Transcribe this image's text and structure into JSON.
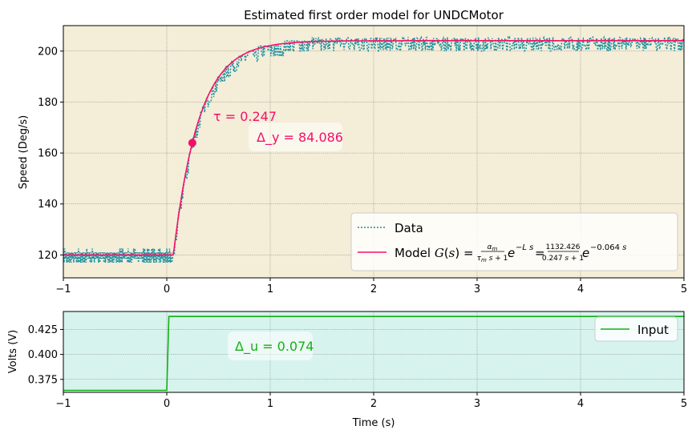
{
  "chart_data": [
    {
      "type": "line",
      "title": "Estimated first order model for UNDCMotor",
      "ylabel": "Speed (Deg/s)",
      "xlim": [
        -1,
        5
      ],
      "ylim": [
        111,
        210
      ],
      "xticks": [
        -1,
        0,
        1,
        2,
        3,
        4,
        5
      ],
      "yticks": [
        120,
        140,
        160,
        180,
        200
      ],
      "grid": true,
      "legend_position": "bottom-right",
      "colors": {
        "background": "#f4edd8",
        "data": "#1a8fa0",
        "model": "#f50f68"
      },
      "model": {
        "y0": 120,
        "delta_y": 84.086,
        "tau": 0.247,
        "delay": 0.064,
        "t_step": 0
      },
      "tau_point": {
        "x": 0.247,
        "y": 164
      },
      "series": [
        {
          "name": "Data",
          "style": "dotted"
        },
        {
          "name": "Model",
          "style": "solid"
        }
      ],
      "legend": {
        "data_label": "Data",
        "model_label": "Model G(s) = α_m/(τ_m s+1) e^(−L s) = 1132.426/(0.247 s+1) e^(−0.064 s)"
      },
      "annotations": {
        "tau": "τ = 0.247",
        "delta_y": "Δ_y = 84.086"
      }
    },
    {
      "type": "line",
      "xlabel": "Time (s)",
      "ylabel": "Volts (V)",
      "xlim": [
        -1,
        5
      ],
      "ylim": [
        0.362,
        0.443
      ],
      "xticks": [
        -1,
        0,
        1,
        2,
        3,
        4,
        5
      ],
      "yticks": [
        0.375,
        0.4,
        0.425
      ],
      "grid": true,
      "legend_position": "top-right",
      "colors": {
        "background": "#d7f3ee",
        "input": "#14b014"
      },
      "series": [
        {
          "name": "Input",
          "x": [
            -1,
            0.0,
            0.02,
            5
          ],
          "y": [
            0.364,
            0.364,
            0.438,
            0.438
          ]
        }
      ],
      "annotations": {
        "delta_u": "Δ_u = 0.074"
      }
    }
  ]
}
